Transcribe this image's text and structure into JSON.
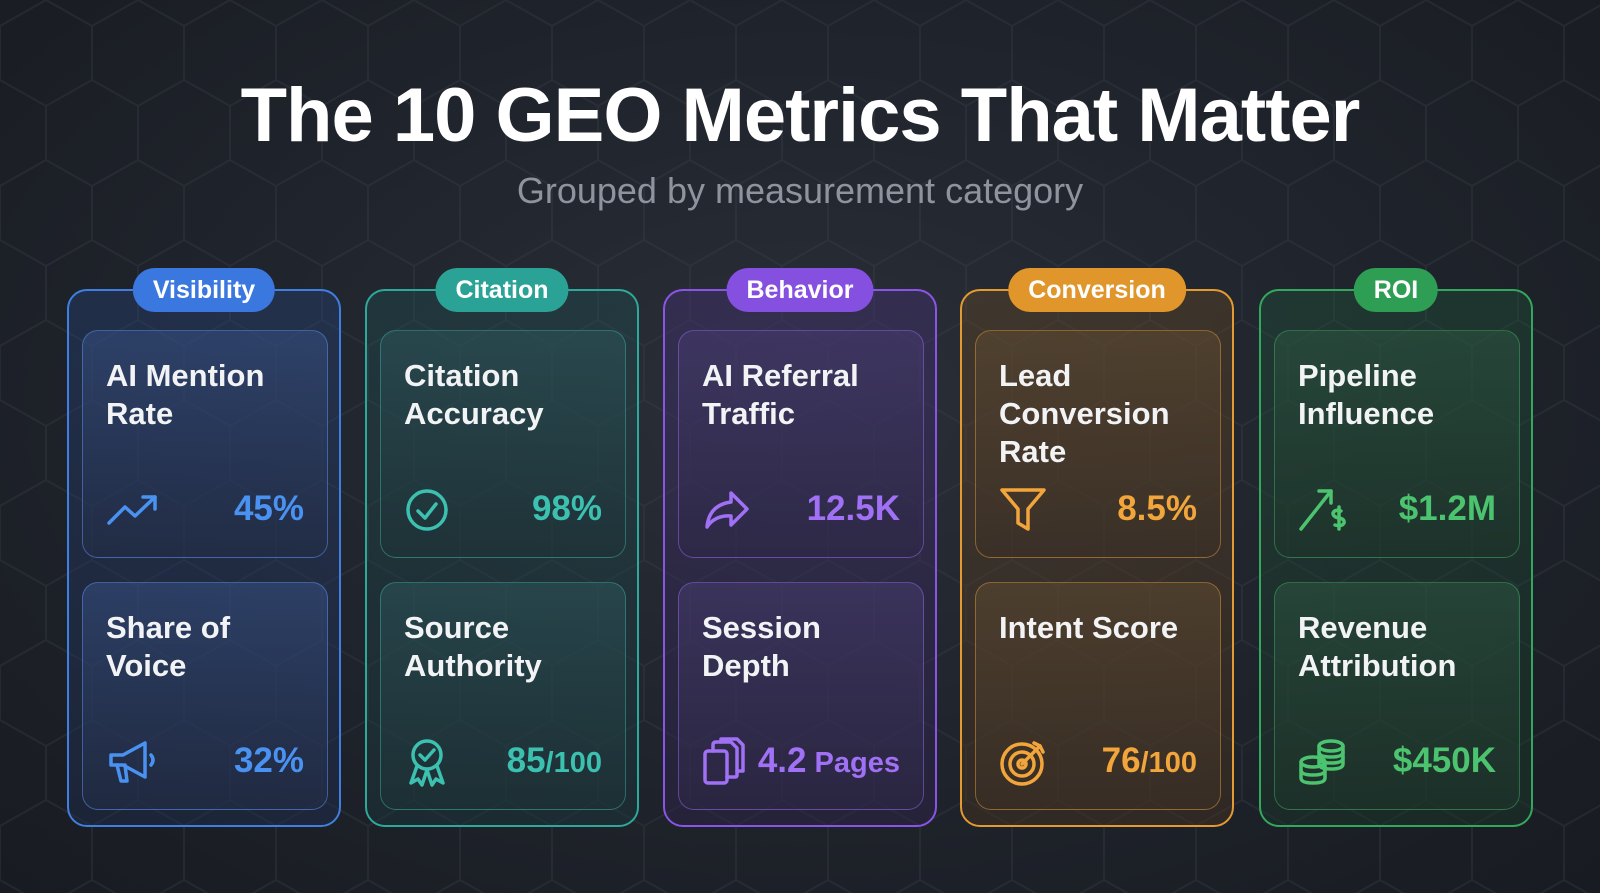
{
  "header": {
    "title": "The 10 GEO Metrics That Matter",
    "subtitle": "Grouped by measurement category"
  },
  "colors": {
    "visibility": "#3a78e0",
    "citation": "#2aa396",
    "behavior": "#8550e0",
    "conversion": "#e0962a",
    "roi": "#2f9e55"
  },
  "categories": [
    {
      "label": "Visibility",
      "metrics": [
        {
          "title": "AI Mention Rate",
          "value": "45%",
          "suffix": "",
          "icon": "trending-up-icon"
        },
        {
          "title": "Share of Voice",
          "value": "32%",
          "suffix": "",
          "icon": "megaphone-icon"
        }
      ]
    },
    {
      "label": "Citation",
      "metrics": [
        {
          "title": "Citation Accuracy",
          "value": "98%",
          "suffix": "",
          "icon": "check-circle-icon"
        },
        {
          "title": "Source Authority",
          "value": "85",
          "suffix": "/100",
          "icon": "award-badge-icon"
        }
      ]
    },
    {
      "label": "Behavior",
      "metrics": [
        {
          "title": "AI Referral Traffic",
          "value": "12.5K",
          "suffix": "",
          "icon": "share-arrow-icon"
        },
        {
          "title": "Session Depth",
          "value": "4.2",
          "suffix": " Pages",
          "icon": "pages-stack-icon"
        }
      ]
    },
    {
      "label": "Conversion",
      "metrics": [
        {
          "title": "Lead Conversion Rate",
          "value": "8.5%",
          "suffix": "",
          "icon": "funnel-icon"
        },
        {
          "title": "Intent Score",
          "value": "76",
          "suffix": "/100",
          "icon": "target-icon"
        }
      ]
    },
    {
      "label": "ROI",
      "metrics": [
        {
          "title": "Pipeline Influence",
          "value": "$1.2M",
          "suffix": "",
          "icon": "arrow-dollar-icon"
        },
        {
          "title": "Revenue Attribution",
          "value": "$450K",
          "suffix": "",
          "icon": "coin-stack-icon"
        }
      ]
    }
  ]
}
